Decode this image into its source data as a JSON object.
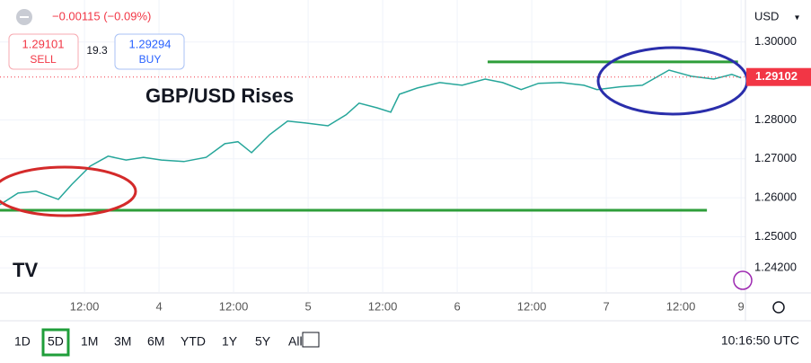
{
  "header": {
    "change": "−0.00115 (−0.09%)",
    "sell_price": "1.29101",
    "sell_label": "SELL",
    "spread": "19.3",
    "buy_price": "1.29294",
    "buy_label": "BUY",
    "currency": "USD"
  },
  "ranges": [
    "1D",
    "5D",
    "1M",
    "3M",
    "6M",
    "YTD",
    "1Y",
    "5Y",
    "All"
  ],
  "active_range": 1,
  "clock": "10:16:50 UTC",
  "chart_data": {
    "type": "line",
    "title": "GBP/USD Rises",
    "color": "#26a69a",
    "x": [
      -25.6,
      -22.7,
      -19.8,
      -16.2,
      -14,
      -11.1,
      -8.2,
      -5.3,
      -2.5,
      0.4,
      4,
      7.6,
      10.6,
      12.7,
      14.9,
      17.8,
      20.7,
      23.6,
      27.2,
      30.1,
      32.2,
      35.1,
      37.3,
      38.7,
      41.6,
      45.2,
      48.8,
      52.5,
      55.3,
      58.3,
      61.1,
      64.7,
      68.4,
      70.5,
      74.2,
      77.8,
      82.1,
      85.7,
      89.3,
      92.2,
      93.7
    ],
    "values": [
      1.2582,
      1.2612,
      1.2617,
      1.2596,
      1.2635,
      1.2681,
      1.2707,
      1.2697,
      1.2704,
      1.2697,
      1.2693,
      1.2704,
      1.2739,
      1.2744,
      1.2716,
      1.2762,
      1.2797,
      1.2792,
      1.2785,
      1.2813,
      1.2843,
      1.2831,
      1.282,
      1.2866,
      1.2882,
      1.2896,
      1.2889,
      1.2905,
      1.2896,
      1.2878,
      1.2894,
      1.2896,
      1.2889,
      1.2878,
      1.2885,
      1.2889,
      1.2928,
      1.2912,
      1.2905,
      1.2917,
      1.2908
    ],
    "last_price": 1.29102,
    "levels": [
      {
        "value": 1.2949,
        "x": [
          52.9,
          93.2
        ],
        "color": "#2e9e3a"
      },
      {
        "value": 1.2568,
        "x": [
          -25.6,
          88.2
        ],
        "color": "#2e9e3a"
      }
    ],
    "xlim": [
      -25.6,
      94.4
    ],
    "ylim": [
      1.2358,
      1.3108
    ],
    "xticks": [
      {
        "value": -12,
        "label": "12:00"
      },
      {
        "value": 0,
        "label": "4"
      },
      {
        "value": 12,
        "label": "12:00"
      },
      {
        "value": 24,
        "label": "5"
      },
      {
        "value": 36,
        "label": "12:00"
      },
      {
        "value": 48,
        "label": "6"
      },
      {
        "value": 60,
        "label": "12:00"
      },
      {
        "value": 72,
        "label": "7"
      },
      {
        "value": 84,
        "label": "12:00"
      },
      {
        "value": 93.7,
        "label": "9"
      }
    ],
    "yticks": [
      {
        "value": 1.3,
        "label": "1.30000"
      },
      {
        "value": 1.28,
        "label": "1.28000"
      },
      {
        "value": 1.27,
        "label": "1.27000"
      },
      {
        "value": 1.26,
        "label": "1.26000"
      },
      {
        "value": 1.25,
        "label": "1.25000"
      },
      {
        "value": 1.242,
        "label": "1.24200"
      }
    ],
    "grid": true
  }
}
